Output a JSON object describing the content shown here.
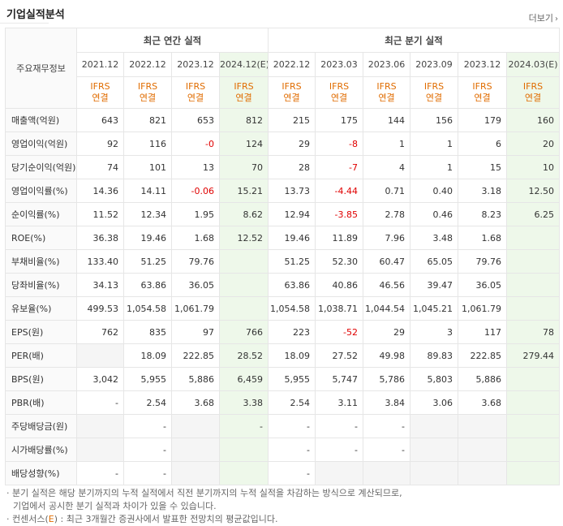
{
  "header": {
    "title": "기업실적분석",
    "more_label": "더보기",
    "more_icon": "chevron-right-icon"
  },
  "table": {
    "corner_label": "주요재무정보",
    "group_annual": "최근 연간 실적",
    "group_quarter": "최근 분기 실적",
    "annual_periods": [
      "2021.12",
      "2022.12",
      "2023.12",
      "2024.12(E)"
    ],
    "quarter_periods": [
      "2022.12",
      "2023.03",
      "2023.06",
      "2023.09",
      "2023.12",
      "2024.03(E)"
    ],
    "ifrs_top": "IFRS",
    "ifrs_bottom": "연결",
    "rows": [
      {
        "label": "매출액(억원)",
        "annual": [
          "643",
          "821",
          "653",
          "812"
        ],
        "quarter": [
          "215",
          "175",
          "144",
          "156",
          "179",
          "160"
        ]
      },
      {
        "label": "영업이익(억원)",
        "annual": [
          "92",
          "116",
          "-0",
          "124"
        ],
        "quarter": [
          "29",
          "-8",
          "1",
          "1",
          "6",
          "20"
        ]
      },
      {
        "label": "당기순이익(억원)",
        "annual": [
          "74",
          "101",
          "13",
          "70"
        ],
        "quarter": [
          "28",
          "-7",
          "4",
          "1",
          "15",
          "10"
        ]
      },
      {
        "label": "영업이익률(%)",
        "annual": [
          "14.36",
          "14.11",
          "-0.06",
          "15.21"
        ],
        "quarter": [
          "13.73",
          "-4.44",
          "0.71",
          "0.40",
          "3.18",
          "12.50"
        ]
      },
      {
        "label": "순이익률(%)",
        "annual": [
          "11.52",
          "12.34",
          "1.95",
          "8.62"
        ],
        "quarter": [
          "12.94",
          "-3.85",
          "2.78",
          "0.46",
          "8.23",
          "6.25"
        ]
      },
      {
        "label": "ROE(%)",
        "annual": [
          "36.38",
          "19.46",
          "1.68",
          "12.52"
        ],
        "quarter": [
          "19.46",
          "11.89",
          "7.96",
          "3.48",
          "1.68",
          ""
        ]
      },
      {
        "label": "부채비율(%)",
        "annual": [
          "133.40",
          "51.25",
          "79.76",
          ""
        ],
        "quarter": [
          "51.25",
          "52.30",
          "60.47",
          "65.05",
          "79.76",
          ""
        ]
      },
      {
        "label": "당좌비율(%)",
        "annual": [
          "34.13",
          "63.86",
          "36.05",
          ""
        ],
        "quarter": [
          "63.86",
          "40.86",
          "46.56",
          "39.47",
          "36.05",
          ""
        ]
      },
      {
        "label": "유보율(%)",
        "annual": [
          "499.53",
          "1,054.58",
          "1,061.79",
          ""
        ],
        "quarter": [
          "1,054.58",
          "1,038.71",
          "1,044.54",
          "1,045.21",
          "1,061.79",
          ""
        ]
      },
      {
        "label": "EPS(원)",
        "annual": [
          "762",
          "835",
          "97",
          "766"
        ],
        "quarter": [
          "223",
          "-52",
          "29",
          "3",
          "117",
          "78"
        ]
      },
      {
        "label": "PER(배)",
        "annual": [
          "",
          "18.09",
          "222.85",
          "28.52"
        ],
        "quarter": [
          "18.09",
          "27.52",
          "49.98",
          "89.83",
          "222.85",
          "279.44"
        ]
      },
      {
        "label": "BPS(원)",
        "annual": [
          "3,042",
          "5,955",
          "5,886",
          "6,459"
        ],
        "quarter": [
          "5,955",
          "5,747",
          "5,786",
          "5,803",
          "5,886",
          ""
        ]
      },
      {
        "label": "PBR(배)",
        "annual": [
          "-",
          "2.54",
          "3.68",
          "3.38"
        ],
        "quarter": [
          "2.54",
          "3.11",
          "3.84",
          "3.06",
          "3.68",
          ""
        ]
      },
      {
        "label": "주당배당금(원)",
        "annual": [
          "",
          "-",
          "",
          "-"
        ],
        "quarter": [
          "-",
          "-",
          "-",
          "",
          "",
          " "
        ]
      },
      {
        "label": "시가배당률(%)",
        "annual": [
          "",
          "-",
          "",
          ""
        ],
        "quarter": [
          "-",
          "-",
          "-",
          "",
          "",
          ""
        ]
      },
      {
        "label": "배당성향(%)",
        "annual": [
          "-",
          "-",
          "",
          ""
        ],
        "quarter": [
          "-",
          "",
          "",
          "",
          "",
          ""
        ]
      }
    ]
  },
  "notes": {
    "line1": "· 분기 실적은 해당 분기까지의 누적 실적에서 직전 분기까지의 누적 실적을 차감하는 방식으로 계산되므로,",
    "line2": "기업에서 공시한 분기 실적과 차이가 있을 수 있습니다.",
    "line3_prefix": "· 컨센서스(",
    "line3_e": "E",
    "line3_suffix": ") : 최근 3개월간 증권사에서 발표한 전망치의 평균값입니다."
  }
}
